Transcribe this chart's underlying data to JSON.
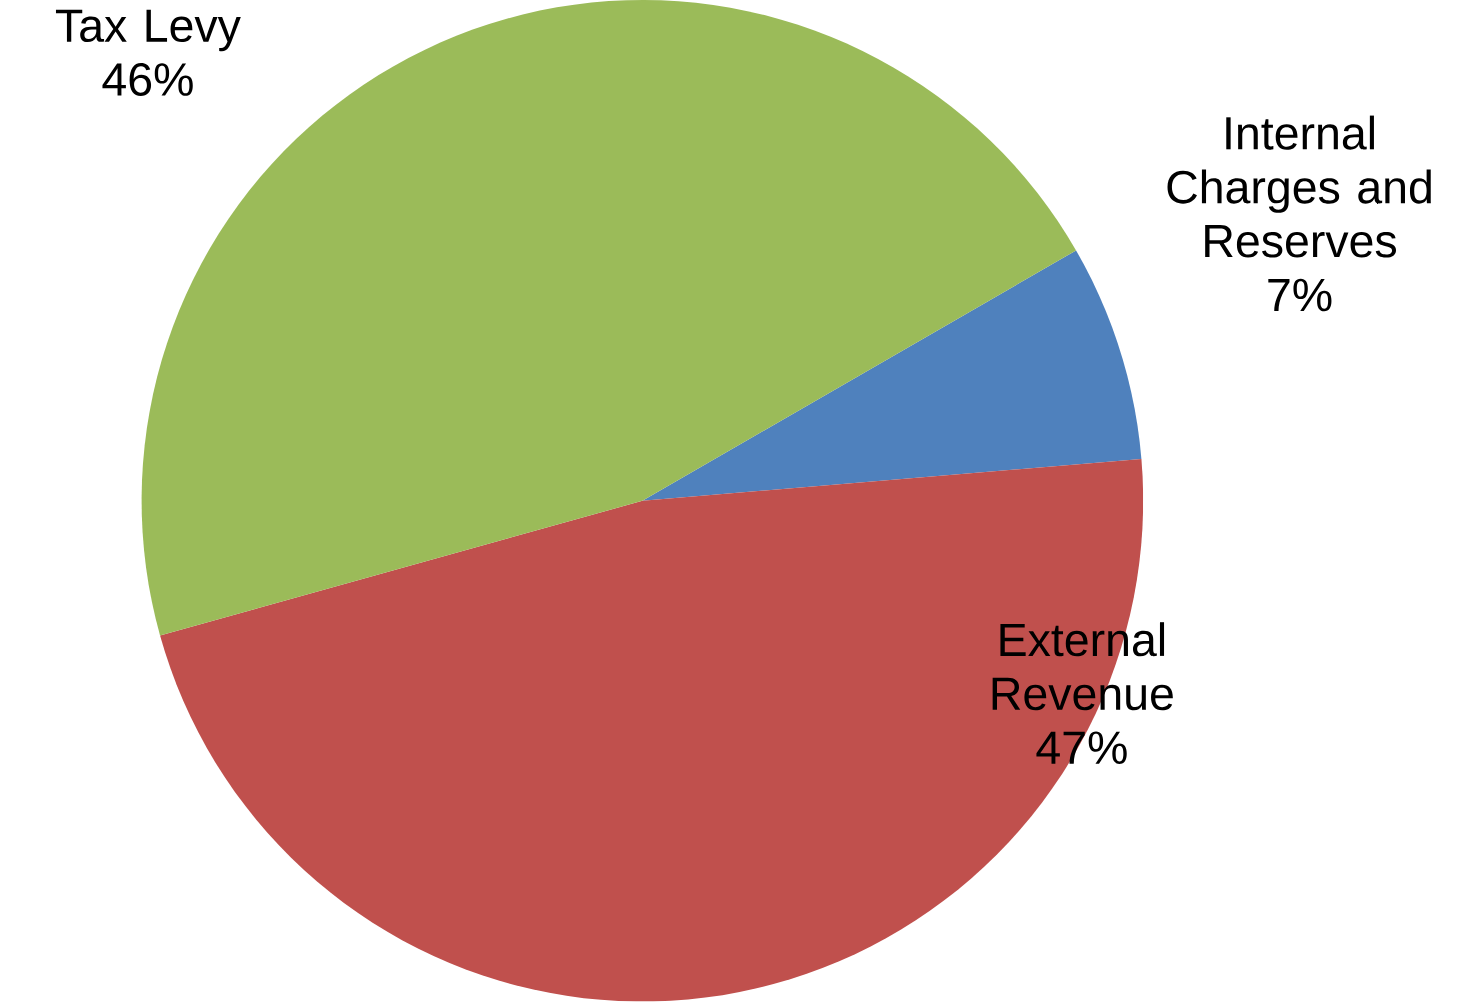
{
  "chart_data": {
    "type": "pie",
    "categories": [
      "Internal Charges and Reserves",
      "External Revenue",
      "Tax Levy"
    ],
    "values": [
      7,
      47,
      46
    ],
    "colors": [
      "#4f81bd",
      "#c0504d",
      "#9bbb59"
    ],
    "value_labels": [
      "7%",
      "47%",
      "46%"
    ]
  }
}
